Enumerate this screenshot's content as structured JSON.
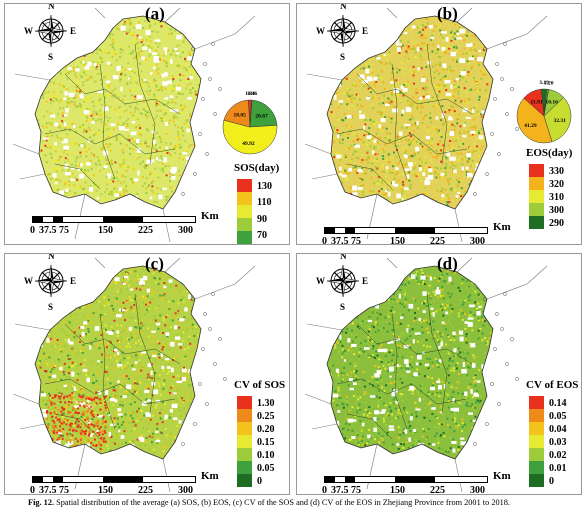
{
  "figure": {
    "caption_label": "Fig. 12.",
    "caption_text": "Spatial distribution of the average (a) SOS, (b) EOS, (c) CV of the SOS and (d) CV of the EOS in Zhejiang Province from 2001 to 2018."
  },
  "compass": {
    "n": "N",
    "s": "S",
    "e": "E",
    "w": "W"
  },
  "scale": {
    "unit": "Km",
    "ticks": [
      "0",
      "37.5",
      "75",
      "150",
      "225",
      "300"
    ]
  },
  "panels": [
    {
      "id": "a",
      "label": "(a)",
      "legend_title": "SOS(day)",
      "legend_values": [
        "130",
        "110",
        "90",
        "70"
      ],
      "legend_colors": [
        "#e8321e",
        "#f4c21c",
        "#e6ea32",
        "#9ccc3a",
        "#3fa13e"
      ],
      "pie": {
        "values": [
          "1.84",
          "0.16",
          "20.67",
          "49.92",
          "18.05"
        ],
        "colors": [
          "#e8321e",
          "#1f6d22",
          "#3fa13e",
          "#f2ee1c",
          "#ee8a1a"
        ]
      }
    },
    {
      "id": "b",
      "label": "(b)",
      "legend_title": "EOS(day)",
      "legend_values": [
        "330",
        "320",
        "310",
        "300",
        "290"
      ],
      "legend_colors": [
        "#e8321e",
        "#f4b21c",
        "#e6ea32",
        "#9ccc3a",
        "#1f6d22"
      ],
      "pie": {
        "values": [
          "3.19",
          "1.20",
          "10.16",
          "32.31",
          "41.29",
          "11.91"
        ],
        "colors": [
          "#1f6d22",
          "#3fa13e",
          "#9ccc3a",
          "#c7dd30",
          "#f4b21c",
          "#e8321e"
        ]
      }
    },
    {
      "id": "c",
      "label": "(c)",
      "legend_title": "CV of SOS",
      "legend_values": [
        "1.30",
        "0.25",
        "0.20",
        "0.15",
        "0.10",
        "0.05",
        "0"
      ],
      "legend_colors": [
        "#e8321e",
        "#ee8a1a",
        "#f4c21c",
        "#e6ea32",
        "#9ccc3a",
        "#3fa13e",
        "#1f6d22"
      ]
    },
    {
      "id": "d",
      "label": "(d)",
      "legend_title": "CV of EOS",
      "legend_values": [
        "0.14",
        "0.05",
        "0.04",
        "0.03",
        "0.02",
        "0.01",
        "0"
      ],
      "legend_colors": [
        "#e8321e",
        "#ee8a1a",
        "#f4c21c",
        "#e6ea32",
        "#9ccc3a",
        "#3fa13e",
        "#1f6d22"
      ]
    }
  ]
}
